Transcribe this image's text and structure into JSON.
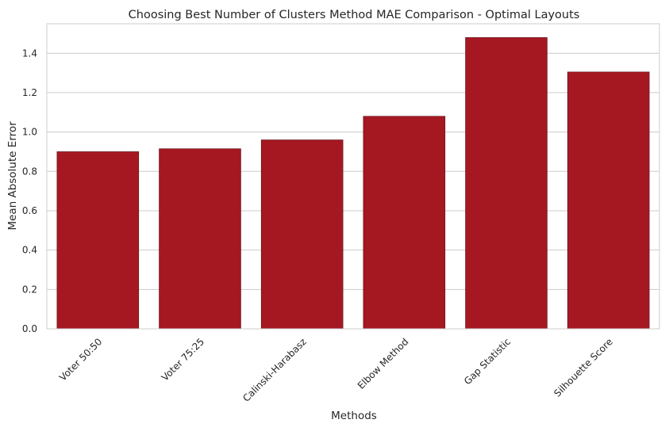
{
  "chart_data": {
    "type": "bar",
    "title": "Choosing Best Number of Clusters Method MAE Comparison - Optimal Layouts",
    "xlabel": "Methods",
    "ylabel": "Mean Absolute Error",
    "categories": [
      "Voter 50:50",
      "Voter 75:25",
      "Calinski-Harabasz",
      "Elbow Method",
      "Gap Statistic",
      "Silhouette Score"
    ],
    "values": [
      0.9,
      0.915,
      0.96,
      1.08,
      1.48,
      1.305
    ],
    "ylim": [
      0,
      1.55
    ],
    "yticks": [
      "0.0",
      "0.2",
      "0.4",
      "0.6",
      "0.8",
      "1.0",
      "1.2",
      "1.4"
    ],
    "bar_color": "#a51822",
    "grid": true,
    "legend": "none"
  }
}
